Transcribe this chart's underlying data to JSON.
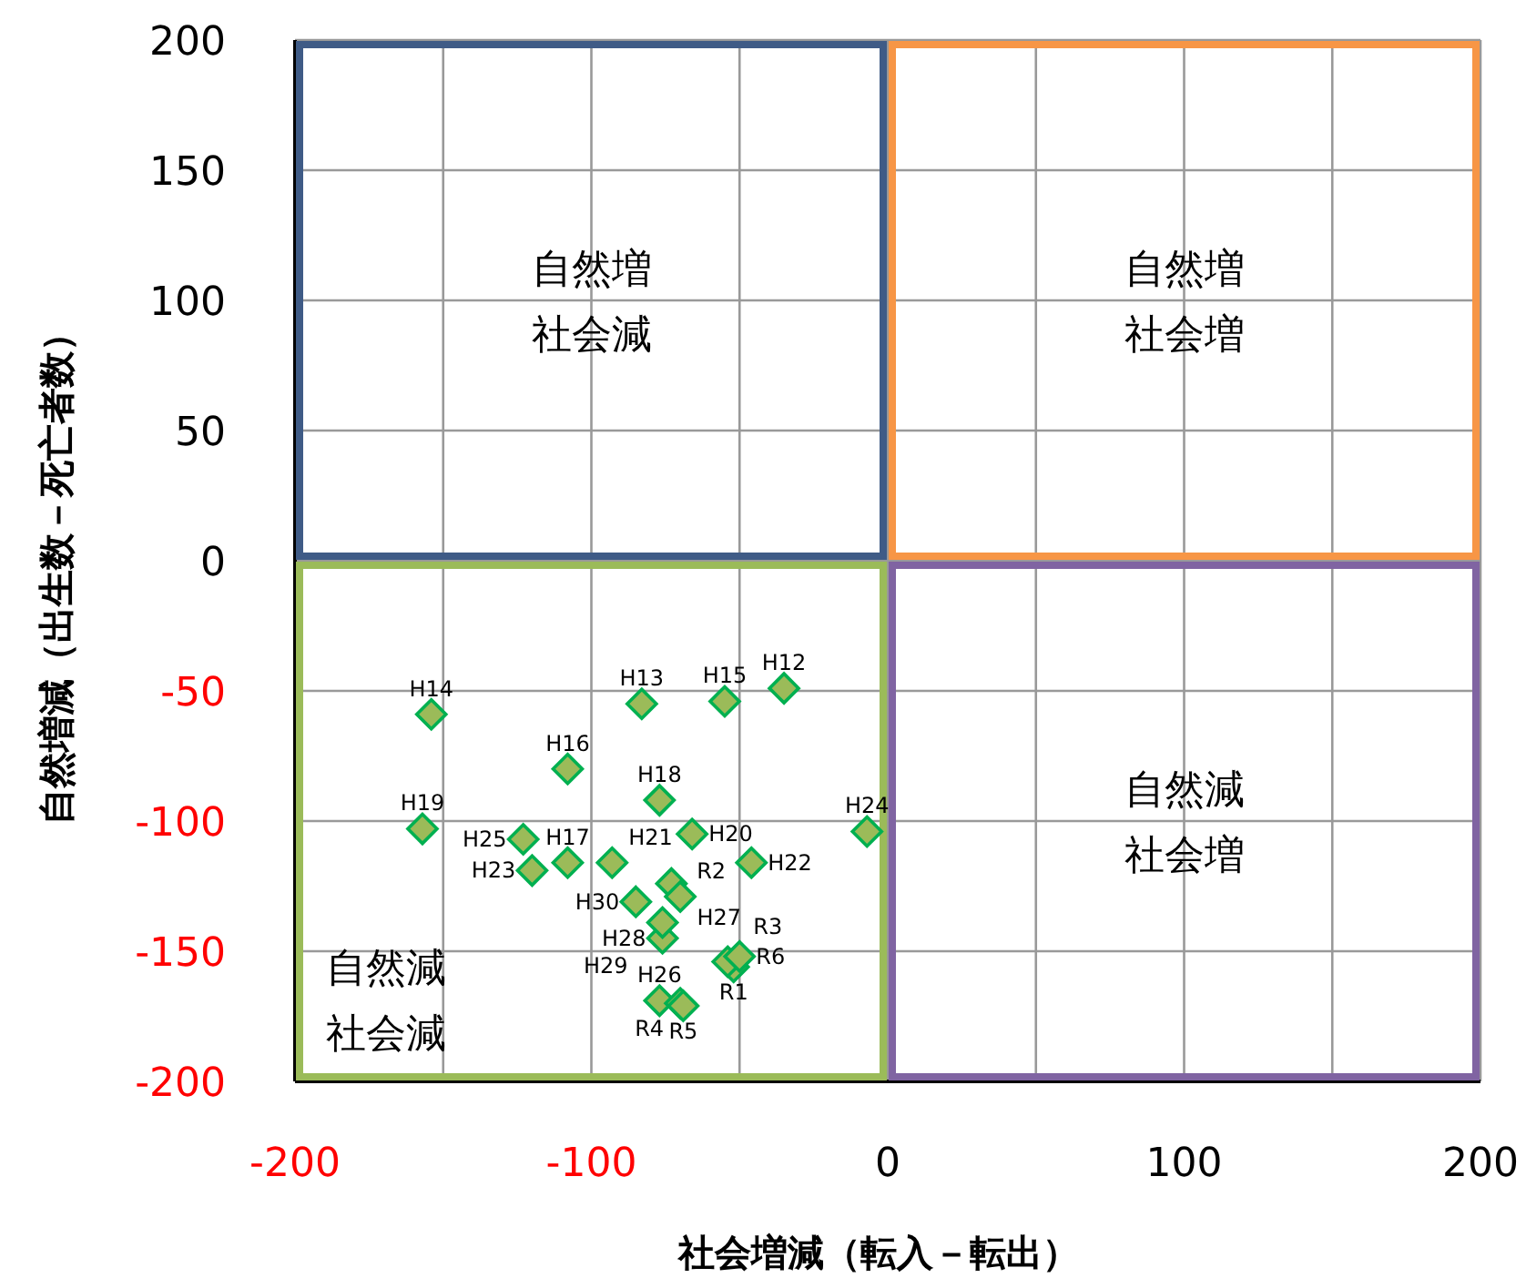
{
  "chart_data": {
    "type": "scatter",
    "xlabel": "社会増減（転入－転出）",
    "ylabel": "自然増減（出生数－死亡者数）",
    "xlim": [
      -200,
      200
    ],
    "ylim": [
      -200,
      200
    ],
    "xticks": [
      -200,
      {
        "value": -150,
        "label": null
      },
      -100,
      {
        "value": -50,
        "label": null
      },
      0,
      {
        "value": 50,
        "label": null
      },
      100,
      {
        "value": 150,
        "label": null
      },
      200
    ],
    "yticks": [
      -200,
      -150,
      -100,
      -50,
      0,
      50,
      100,
      150,
      200
    ],
    "grid": true,
    "marker": "diamond",
    "series": [
      {
        "color": "#9bbb59",
        "x": [
          -35,
          -83,
          -154,
          -55,
          -108,
          -108,
          -77,
          -157,
          -66,
          -93,
          -46,
          -120,
          -7,
          -123,
          -77,
          -73,
          -76,
          -76,
          -85,
          -52,
          -70,
          -54,
          -70,
          -69,
          -50
        ],
        "values": [
          -49,
          -55,
          -59,
          -54,
          -80,
          -116,
          -92,
          -103,
          -105,
          -116,
          -116,
          -119,
          -104,
          -107,
          -169,
          -124,
          -145,
          -139,
          -131,
          -156,
          -129,
          -154,
          -170,
          -171,
          -152
        ],
        "value_labels": [
          "H12",
          "H13",
          "H14",
          "H15",
          "H16",
          "H17",
          "H18",
          "H19",
          "H20",
          "H21",
          "H22",
          "H23",
          "H24",
          "H25",
          "H26",
          "H27",
          "H28",
          "H29",
          "H30",
          "R1",
          "R2",
          "R3",
          "R4",
          "R5",
          "R6"
        ]
      }
    ],
    "annotations": [
      "自然増社会減",
      "自然増社会増",
      "自然減社会増",
      "自然減社会減"
    ]
  }
}
